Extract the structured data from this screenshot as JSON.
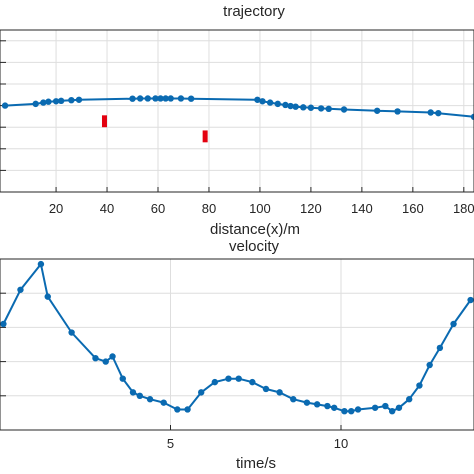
{
  "colors": {
    "series": "#0a6ab1",
    "obstacle": "#e3000f",
    "axis": "#262626",
    "grid": "#dedede"
  },
  "chart_data": [
    {
      "type": "line",
      "title": "trajectory",
      "xlabel": "distance(x)/m",
      "ylabel": "",
      "xlim": [
        -2,
        184
      ],
      "ylim": [
        -4,
        3.5
      ],
      "xticks": [
        20,
        40,
        60,
        80,
        100,
        120,
        140,
        160,
        180
      ],
      "xtick_labels": [
        "20",
        "40",
        "60",
        "80",
        "100",
        "120",
        "140",
        "160",
        "180"
      ],
      "yticks": [
        -3,
        -2,
        -1,
        0,
        1,
        2,
        3
      ],
      "grid": true,
      "series": [
        {
          "x": [
            0,
            12,
            15,
            17,
            20,
            22,
            26,
            29,
            50,
            53,
            56,
            59,
            61,
            63,
            65,
            69,
            73,
            99,
            101,
            104,
            107,
            110,
            112,
            114,
            117,
            120,
            124,
            127,
            133,
            146,
            154,
            167,
            170,
            184
          ],
          "y": [
            0,
            0.08,
            0.14,
            0.18,
            0.2,
            0.22,
            0.25,
            0.27,
            0.32,
            0.33,
            0.33,
            0.33,
            0.33,
            0.33,
            0.33,
            0.33,
            0.32,
            0.27,
            0.2,
            0.14,
            0.08,
            0.03,
            -0.02,
            -0.05,
            -0.08,
            -0.1,
            -0.13,
            -0.15,
            -0.18,
            -0.24,
            -0.27,
            -0.32,
            -0.35,
            -0.52
          ]
        }
      ],
      "obstacles": [
        {
          "x": 39,
          "y_from": -0.45,
          "y_to": -1.0
        },
        {
          "x": 78.5,
          "y_from": -1.15,
          "y_to": -1.7
        }
      ]
    },
    {
      "type": "line",
      "title": "velocity",
      "xlabel": "time/s",
      "ylabel": "",
      "xlim": [
        0,
        13.9
      ],
      "ylim": [
        0,
        100
      ],
      "xticks": [
        5,
        10
      ],
      "xtick_labels": [
        "5",
        "10"
      ],
      "grid": true,
      "series": [
        {
          "x": [
            0.1,
            0.6,
            1.2,
            1.4,
            2.1,
            2.8,
            3.1,
            3.3,
            3.6,
            3.9,
            4.1,
            4.4,
            4.8,
            5.2,
            5.5,
            5.9,
            6.3,
            6.7,
            7.0,
            7.4,
            7.8,
            8.2,
            8.6,
            9.0,
            9.3,
            9.6,
            9.8,
            10.1,
            10.3,
            10.5,
            11.0,
            11.3,
            11.5,
            11.7,
            12.0,
            12.3,
            12.6,
            12.9,
            13.3,
            13.8
          ],
          "y": [
            62,
            82,
            97,
            78,
            57,
            42,
            40,
            43,
            30,
            22,
            20,
            18,
            16,
            12,
            12,
            22,
            28,
            30,
            30,
            28,
            24,
            22,
            18,
            16,
            15,
            14,
            13,
            11,
            11,
            12,
            13,
            14,
            11,
            13,
            18,
            26,
            38,
            48,
            62,
            76
          ]
        }
      ]
    }
  ]
}
